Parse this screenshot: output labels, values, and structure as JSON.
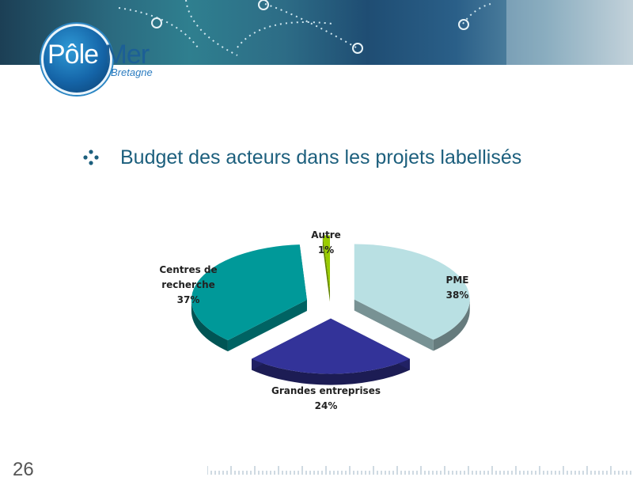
{
  "logo": {
    "main": "Pôle",
    "accent": "Mer",
    "sub": "Bretagne"
  },
  "slide": {
    "heading": "Budget des acteurs dans les projets labellisés",
    "page_number": "26"
  },
  "colors": {
    "heading": "#1c5f7d",
    "pme": "#b9e0e3",
    "grandes": "#333399",
    "centres": "#009999",
    "autre": "#99cc00"
  },
  "chart_data": {
    "type": "pie",
    "title": "",
    "categories": [
      "PME",
      "Grandes entreprises",
      "Centres de recherche",
      "Autre"
    ],
    "values": [
      38,
      24,
      37,
      1
    ],
    "unit": "%",
    "labels": [
      {
        "lines": [
          "PME"
        ],
        "pct": "38%"
      },
      {
        "lines": [
          "Grandes entreprises"
        ],
        "pct": "24%"
      },
      {
        "lines": [
          "Centres de",
          "recherche"
        ],
        "pct": "37%"
      },
      {
        "lines": [
          "Autre"
        ],
        "pct": "1%"
      }
    ],
    "exploded": true,
    "three_d": true
  }
}
